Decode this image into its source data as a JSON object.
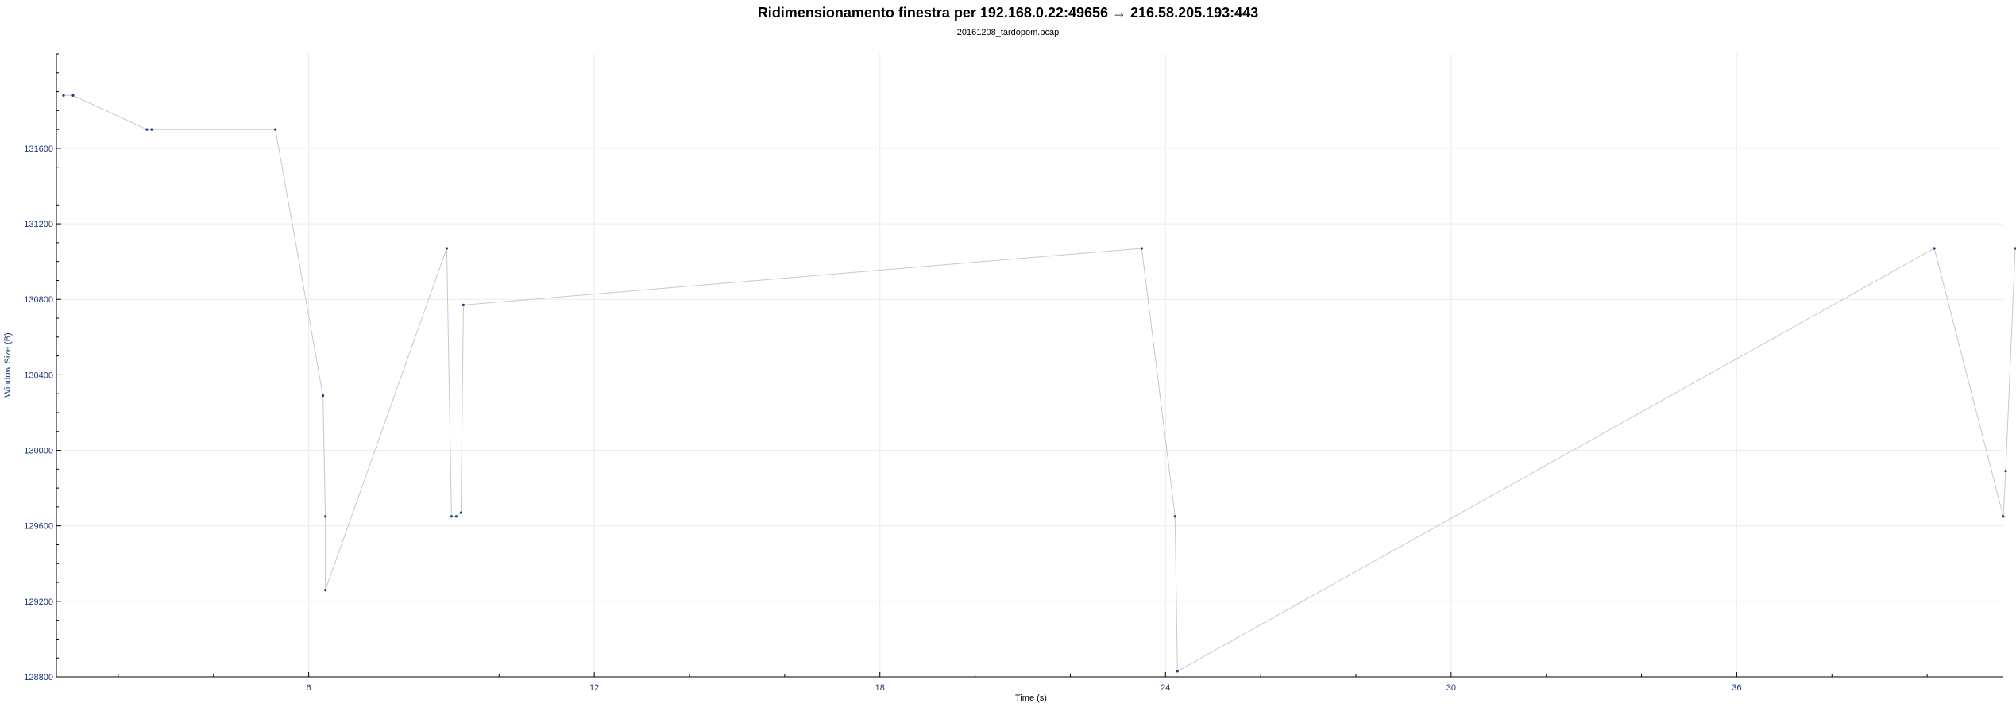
{
  "chart_data": {
    "type": "scatter",
    "title": "Ridimensionamento finestra per 192.168.0.22:49656 → 216.58.205.193:443",
    "subtitle": "20161208_tardopom.pcap",
    "xlabel": "Time (s)",
    "ylabel": "Window Size (B)",
    "xlim": [
      0.7,
      41.6
    ],
    "ylim": [
      128800,
      132100
    ],
    "x_ticks": [
      6,
      12,
      18,
      24,
      30,
      36
    ],
    "y_ticks": [
      128800,
      129200,
      129600,
      130000,
      130400,
      130800,
      131200,
      131600
    ],
    "grid": true,
    "connect_points": true,
    "line_color": "#c8c8c8",
    "point_color": "#1f3c88",
    "series": [
      {
        "x": [
          0.85,
          1.05,
          2.6,
          2.7,
          5.3,
          6.3,
          6.35,
          6.35,
          8.9,
          9.0,
          9.1,
          9.2,
          9.25,
          23.5,
          24.2,
          24.25,
          40.15,
          41.6,
          41.65,
          41.85
        ],
        "y": [
          131880,
          131880,
          131700,
          131700,
          131700,
          130290,
          129650,
          129260,
          131070,
          129650,
          129650,
          129670,
          130770,
          131070,
          129650,
          128830,
          131070,
          129650,
          129890,
          131070
        ]
      }
    ]
  }
}
